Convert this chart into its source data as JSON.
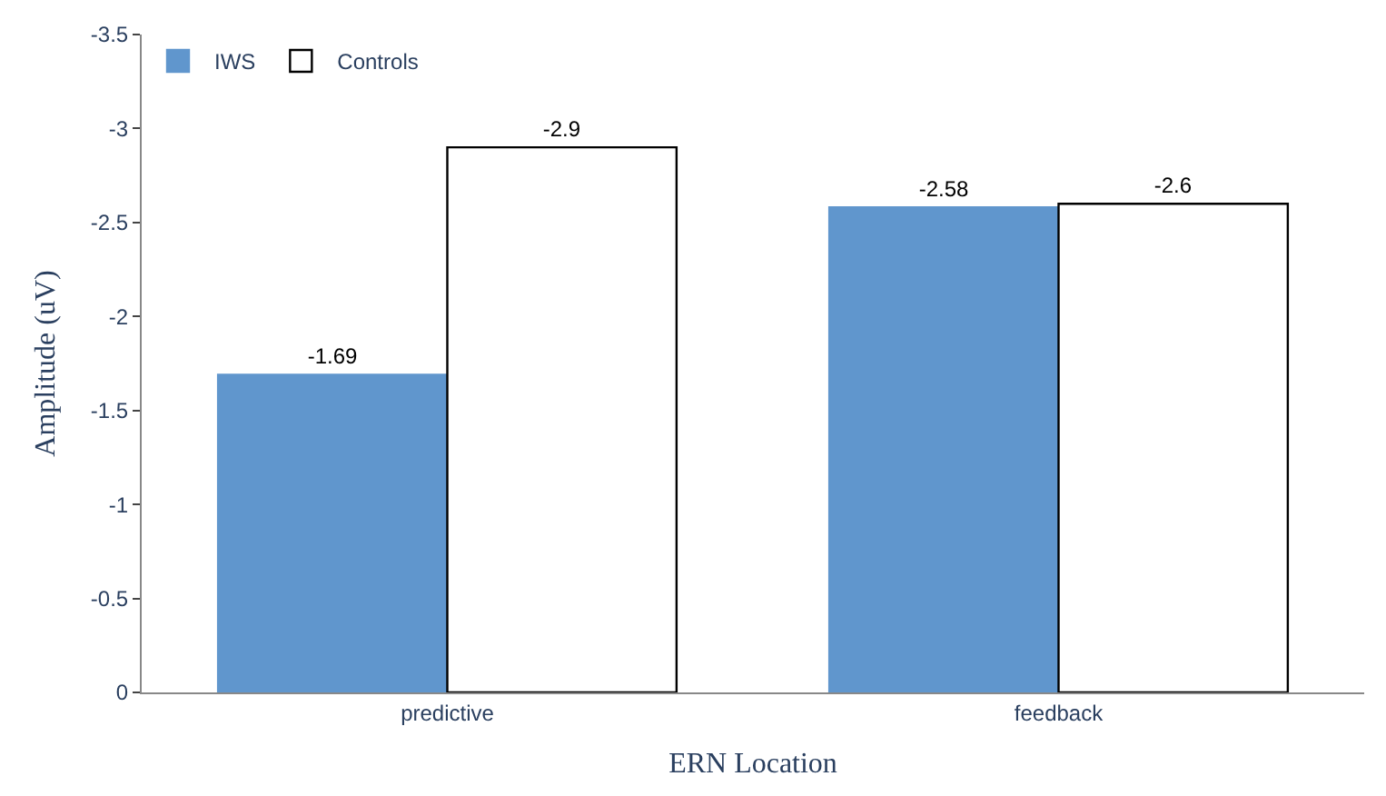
{
  "chart_data": {
    "type": "bar",
    "xlabel": "ERN Location",
    "ylabel": "Amplitude (uV)",
    "categories": [
      "predictive",
      "feedback"
    ],
    "series": [
      {
        "name": "IWS",
        "color": "#6096cd",
        "values": [
          -1.69,
          -2.58
        ]
      },
      {
        "name": "Controls",
        "color": "#ffffff",
        "values": [
          -2.9,
          -2.6
        ]
      }
    ],
    "ylim": [
      0,
      -3.5
    ],
    "yticks": [
      0,
      -0.5,
      -1,
      -1.5,
      -2,
      -2.5,
      -3,
      -3.5
    ],
    "data_labels": true,
    "legend": "top left"
  }
}
